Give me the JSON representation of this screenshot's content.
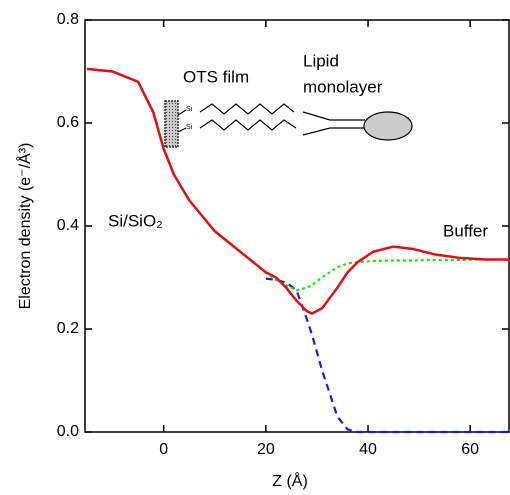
{
  "chart_data": {
    "type": "line",
    "x_label": "Z (Å)",
    "y_label": "Electron density (e⁻/Å³)",
    "annotations": [
      "OTS film",
      "Lipid",
      "monolayer",
      "Si/SiO₂",
      "Buffer"
    ],
    "x": [
      -15,
      -10,
      -5,
      -2,
      0,
      2,
      5,
      10,
      15,
      20,
      22,
      24,
      26,
      28,
      29,
      31,
      34,
      36,
      38,
      41,
      45,
      49,
      53,
      58,
      63,
      68
    ],
    "series": [
      {
        "color": "#1a1ae6",
        "dash": "7,5",
        "values": [
          null,
          null,
          null,
          null,
          null,
          null,
          null,
          null,
          null,
          0.298,
          0.295,
          0.29,
          0.275,
          0.22,
          0.19,
          0.12,
          0.03,
          0.005,
          0,
          0,
          0,
          0,
          0,
          0,
          0,
          0
        ]
      },
      {
        "color": "#22dd22",
        "dash": "3,3",
        "values": [
          0.705,
          0.7,
          0.68,
          0.62,
          0.55,
          0.5,
          0.45,
          0.39,
          0.35,
          0.31,
          0.295,
          0.285,
          0.275,
          0.28,
          0.285,
          0.3,
          0.32,
          0.327,
          0.33,
          0.332,
          0.333,
          0.333,
          0.334,
          0.334,
          0.335,
          0.335
        ]
      },
      {
        "color": "#e01010",
        "dash": "none",
        "values": [
          0.705,
          0.7,
          0.68,
          0.62,
          0.55,
          0.5,
          0.45,
          0.39,
          0.35,
          0.31,
          0.3,
          0.28,
          0.255,
          0.235,
          0.23,
          0.24,
          0.28,
          0.31,
          0.33,
          0.35,
          0.36,
          0.355,
          0.345,
          0.338,
          0.335,
          0.335
        ]
      }
    ],
    "xlim": [
      -15.4,
      67.6
    ],
    "ylim": [
      0,
      0.8
    ],
    "xticks": [
      0,
      20,
      40,
      60
    ],
    "yticks": [
      {
        "value": 0,
        "label": "0.0"
      },
      0.2,
      0.4,
      0.6,
      0.8
    ]
  }
}
